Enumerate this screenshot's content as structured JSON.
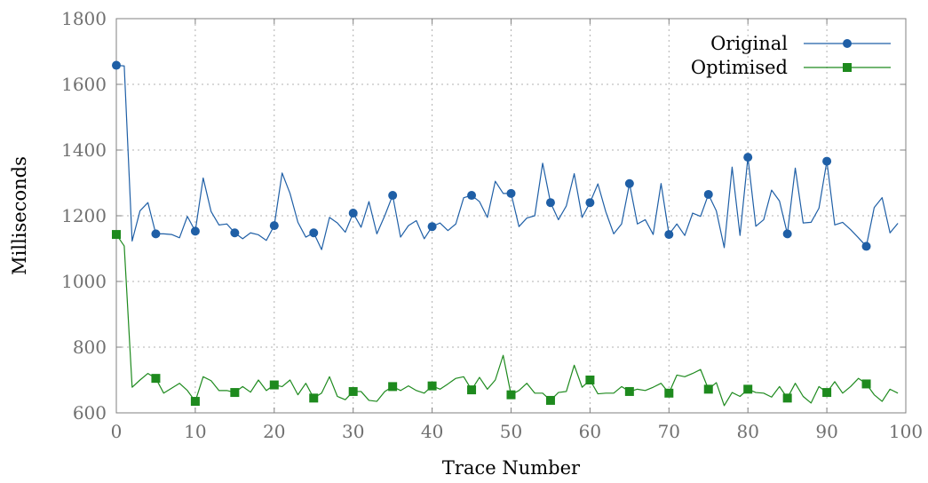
{
  "chart_data": {
    "type": "line",
    "title": "",
    "xlabel": "Trace Number",
    "ylabel": "Milliseconds",
    "xlim": [
      0,
      100
    ],
    "ylim": [
      600,
      1800
    ],
    "xticks": [
      "0",
      "10",
      "20",
      "30",
      "40",
      "50",
      "60",
      "70",
      "80",
      "90",
      "100"
    ],
    "yticks": [
      "600",
      "800",
      "1000",
      "1200",
      "1400",
      "1600",
      "1800"
    ],
    "grid": true,
    "legend": "top-right",
    "marker_every": 5,
    "series": [
      {
        "name": "Original",
        "color": "#1f5fa6",
        "marker": "circle",
        "x": [
          0,
          1,
          2,
          3,
          4,
          5,
          6,
          7,
          8,
          9,
          10,
          11,
          12,
          13,
          14,
          15,
          16,
          17,
          18,
          19,
          20,
          21,
          22,
          23,
          24,
          25,
          26,
          27,
          28,
          29,
          30,
          31,
          32,
          33,
          34,
          35,
          36,
          37,
          38,
          39,
          40,
          41,
          42,
          43,
          44,
          45,
          46,
          47,
          48,
          49,
          50,
          51,
          52,
          53,
          54,
          55,
          56,
          57,
          58,
          59,
          60,
          61,
          62,
          63,
          64,
          65,
          66,
          67,
          68,
          69,
          70,
          71,
          72,
          73,
          74,
          75,
          76,
          77,
          78,
          79,
          80,
          81,
          82,
          83,
          84,
          85,
          86,
          87,
          88,
          89,
          90,
          91,
          92,
          93,
          94,
          95,
          96,
          97,
          98,
          99
        ],
        "values": [
          1658,
          1656,
          1123,
          1215,
          1240,
          1145,
          1145,
          1143,
          1133,
          1198,
          1153,
          1315,
          1213,
          1172,
          1175,
          1148,
          1130,
          1148,
          1142,
          1125,
          1170,
          1330,
          1268,
          1180,
          1135,
          1148,
          1097,
          1195,
          1178,
          1150,
          1208,
          1165,
          1243,
          1145,
          1200,
          1262,
          1135,
          1170,
          1185,
          1130,
          1167,
          1178,
          1155,
          1175,
          1255,
          1262,
          1243,
          1195,
          1305,
          1268,
          1268,
          1167,
          1193,
          1200,
          1360,
          1240,
          1188,
          1230,
          1328,
          1195,
          1240,
          1297,
          1212,
          1145,
          1175,
          1298,
          1175,
          1188,
          1143,
          1298,
          1143,
          1175,
          1140,
          1208,
          1198,
          1265,
          1215,
          1103,
          1348,
          1140,
          1378,
          1168,
          1188,
          1278,
          1245,
          1145,
          1345,
          1178,
          1180,
          1223,
          1366,
          1172,
          1180,
          1158,
          1133,
          1107,
          1225,
          1255,
          1148,
          1177
        ]
      },
      {
        "name": "Optimised",
        "color": "#1e8a1e",
        "marker": "square",
        "x": [
          0,
          1,
          2,
          3,
          4,
          5,
          6,
          7,
          8,
          9,
          10,
          11,
          12,
          13,
          14,
          15,
          16,
          17,
          18,
          19,
          20,
          21,
          22,
          23,
          24,
          25,
          26,
          27,
          28,
          29,
          30,
          31,
          32,
          33,
          34,
          35,
          36,
          37,
          38,
          39,
          40,
          41,
          42,
          43,
          44,
          45,
          46,
          47,
          48,
          49,
          50,
          51,
          52,
          53,
          54,
          55,
          56,
          57,
          58,
          59,
          60,
          61,
          62,
          63,
          64,
          65,
          66,
          67,
          68,
          69,
          70,
          71,
          72,
          73,
          74,
          75,
          76,
          77,
          78,
          79,
          80,
          81,
          82,
          83,
          84,
          85,
          86,
          87,
          88,
          89,
          90,
          91,
          92,
          93,
          94,
          95,
          96,
          97,
          98,
          99
        ],
        "values": [
          1143,
          1108,
          678,
          700,
          720,
          705,
          660,
          675,
          690,
          668,
          635,
          710,
          698,
          668,
          668,
          662,
          680,
          663,
          700,
          668,
          685,
          680,
          700,
          655,
          690,
          645,
          660,
          710,
          650,
          640,
          665,
          665,
          638,
          635,
          665,
          680,
          668,
          682,
          668,
          660,
          682,
          672,
          688,
          705,
          710,
          670,
          708,
          672,
          700,
          775,
          655,
          668,
          690,
          660,
          660,
          638,
          662,
          665,
          745,
          678,
          700,
          658,
          660,
          660,
          680,
          665,
          672,
          668,
          678,
          690,
          660,
          715,
          710,
          720,
          732,
          672,
          692,
          622,
          662,
          650,
          672,
          662,
          660,
          648,
          680,
          645,
          690,
          650,
          630,
          680,
          662,
          695,
          660,
          680,
          705,
          688,
          655,
          635,
          672,
          660
        ]
      }
    ]
  }
}
